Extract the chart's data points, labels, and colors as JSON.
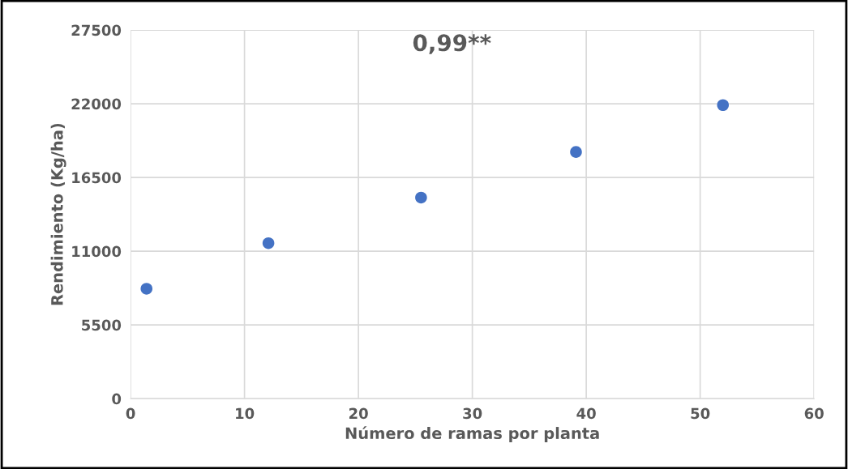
{
  "chart_data": {
    "type": "scatter",
    "xlabel": "Número de ramas por planta",
    "ylabel": "Rendimiento (Kg/ha)",
    "x": [
      1.4,
      12.1,
      25.5,
      39.1,
      52.0
    ],
    "series": [
      {
        "color": "#4472c4",
        "values": [
          8200,
          11600,
          15000,
          18400,
          21900
        ]
      }
    ],
    "xlim": [
      0,
      60
    ],
    "xticks": [
      0,
      10,
      20,
      30,
      40,
      50,
      60
    ],
    "ylim": [
      0,
      27500
    ],
    "yticks": [
      0,
      5500,
      11000,
      16500,
      22000,
      27500
    ],
    "grid": true,
    "marker": "circle",
    "annotations": [
      "0,99**"
    ]
  }
}
